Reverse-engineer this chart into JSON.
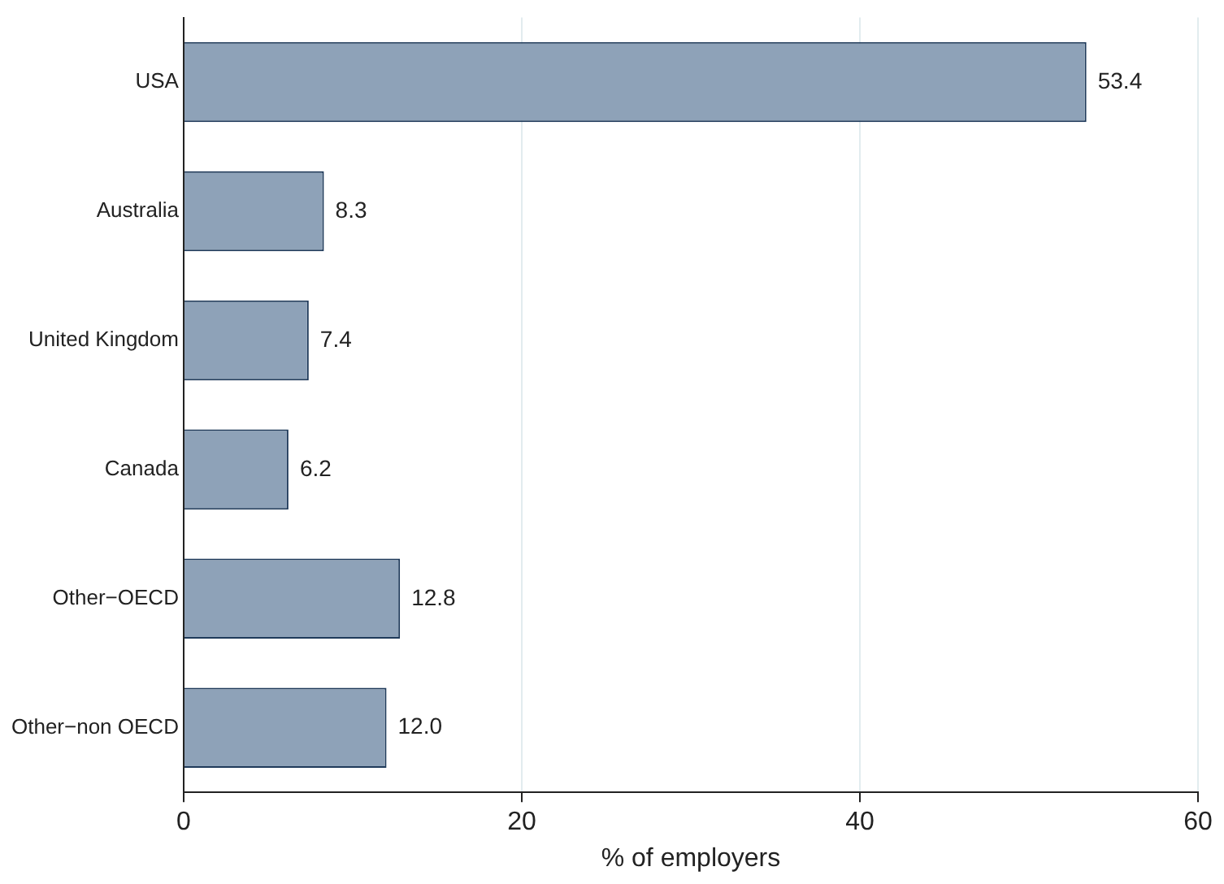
{
  "chart_data": {
    "type": "bar",
    "orientation": "horizontal",
    "xlabel": "% of employers",
    "categories": [
      "USA",
      "Australia",
      "United Kingdom",
      "Canada",
      "Other−OECD",
      "Other−non OECD"
    ],
    "values": [
      53.4,
      8.3,
      7.4,
      6.2,
      12.8,
      12.0
    ],
    "value_labels": [
      "53.4",
      "8.3",
      "7.4",
      "6.2",
      "12.8",
      "12.0"
    ],
    "color": "#8ea2b8",
    "xlim": [
      0,
      60
    ],
    "xticks": [
      0,
      20,
      40,
      60
    ],
    "grid": "x",
    "legend": false
  }
}
